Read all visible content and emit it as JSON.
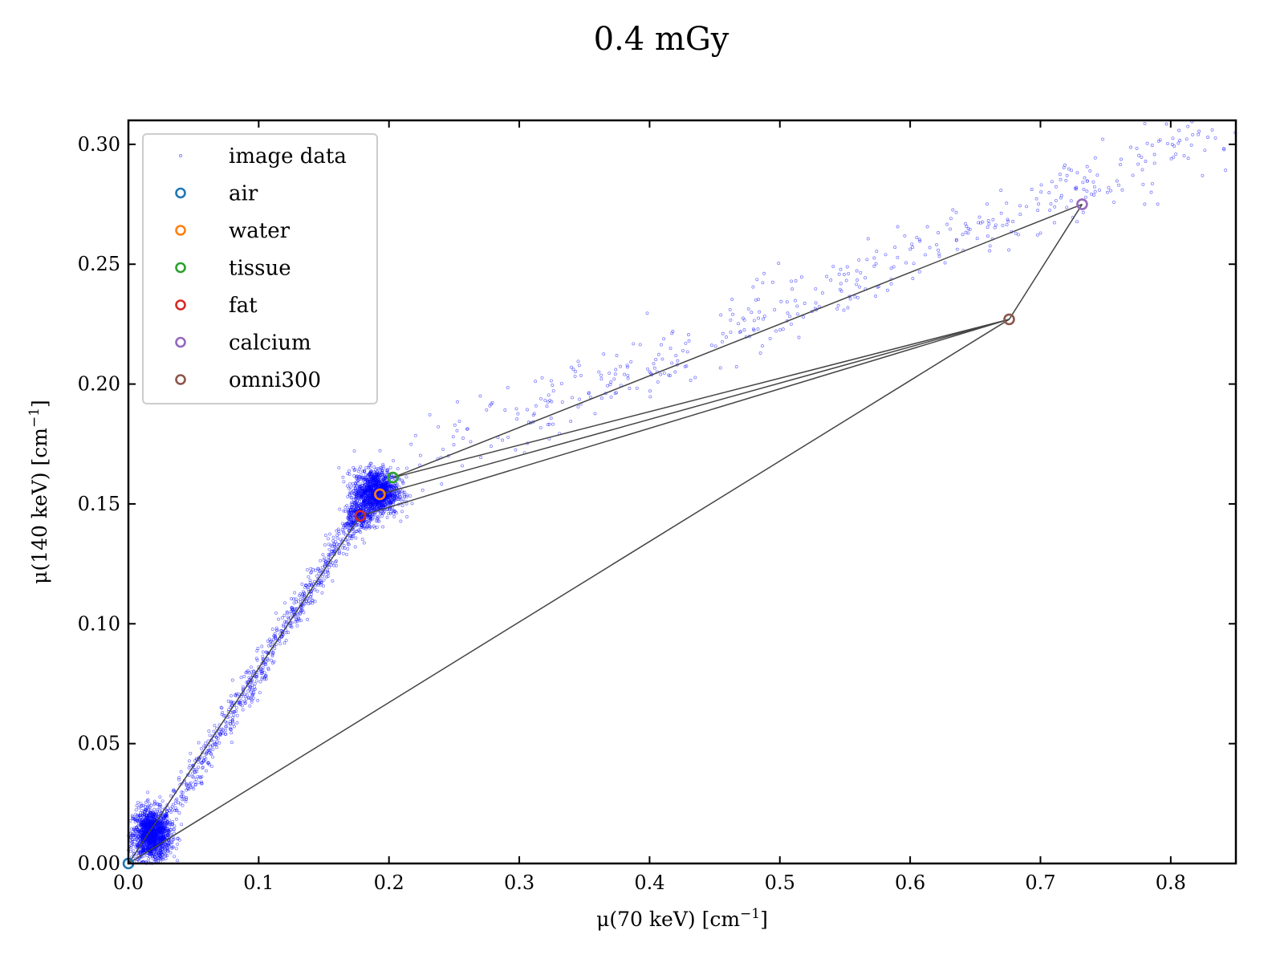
{
  "chart_data": {
    "type": "scatter",
    "title": "0.4 mGy",
    "xlabel": "μ(70 keV) [cm",
    "ylabel": "μ(140 keV) [cm",
    "label_unit_exponent": "−1",
    "label_close": "]",
    "xlim": [
      0.0,
      0.85
    ],
    "ylim": [
      0.0,
      0.31
    ],
    "xticks": [
      "0.0",
      "0.1",
      "0.2",
      "0.3",
      "0.4",
      "0.5",
      "0.6",
      "0.7",
      "0.8"
    ],
    "yticks": [
      "0.00",
      "0.05",
      "0.10",
      "0.15",
      "0.20",
      "0.25",
      "0.30"
    ],
    "grid": false,
    "legend_position": "top-left",
    "series": [
      {
        "name": "image data",
        "kind": "scatter-cloud",
        "color": "#0000ff",
        "clusters": [
          {
            "center": [
              0.018,
              0.012
            ],
            "spread": [
              0.012,
              0.009
            ],
            "count": 1400
          },
          {
            "center": [
              0.19,
              0.155
            ],
            "spread": [
              0.014,
              0.008
            ],
            "count": 1200
          },
          {
            "center": [
              0.178,
              0.145
            ],
            "spread": [
              0.008,
              0.006
            ],
            "count": 250
          }
        ],
        "bands": [
          {
            "from": [
              0.03,
              0.02
            ],
            "to": [
              0.175,
              0.145
            ],
            "width": 0.004,
            "count": 700
          },
          {
            "from": [
              0.21,
              0.165
            ],
            "to": [
              0.85,
              0.31
            ],
            "width": 0.008,
            "count": 450
          }
        ],
        "outliers": [
          [
            0.27,
            0.195
          ],
          [
            0.785,
            0.28
          ],
          [
            0.78,
            0.275
          ],
          [
            0.79,
            0.275
          ],
          [
            0.34,
            0.207
          ]
        ]
      },
      {
        "name": "air",
        "color": "#1f77b4",
        "points": [
          [
            0.0,
            0.0
          ]
        ]
      },
      {
        "name": "water",
        "color": "#ff7f0e",
        "points": [
          [
            0.193,
            0.154
          ]
        ]
      },
      {
        "name": "tissue",
        "color": "#2ca02c",
        "points": [
          [
            0.203,
            0.161
          ]
        ]
      },
      {
        "name": "fat",
        "color": "#d62728",
        "points": [
          [
            0.178,
            0.145
          ]
        ]
      },
      {
        "name": "calcium",
        "color": "#9467bd",
        "points": [
          [
            0.732,
            0.275
          ]
        ]
      },
      {
        "name": "omni300",
        "color": "#8c564b",
        "points": [
          [
            0.676,
            0.227
          ]
        ]
      }
    ],
    "lines": {
      "color": "#444444",
      "segments": [
        [
          [
            0.0,
            0.0
          ],
          [
            0.178,
            0.145
          ]
        ],
        [
          [
            0.0,
            0.0
          ],
          [
            0.676,
            0.227
          ]
        ],
        [
          [
            0.193,
            0.154
          ],
          [
            0.676,
            0.227
          ]
        ],
        [
          [
            0.203,
            0.161
          ],
          [
            0.676,
            0.227
          ]
        ],
        [
          [
            0.178,
            0.145
          ],
          [
            0.676,
            0.227
          ]
        ],
        [
          [
            0.203,
            0.161
          ],
          [
            0.732,
            0.275
          ]
        ],
        [
          [
            0.732,
            0.275
          ],
          [
            0.676,
            0.227
          ]
        ]
      ]
    }
  }
}
